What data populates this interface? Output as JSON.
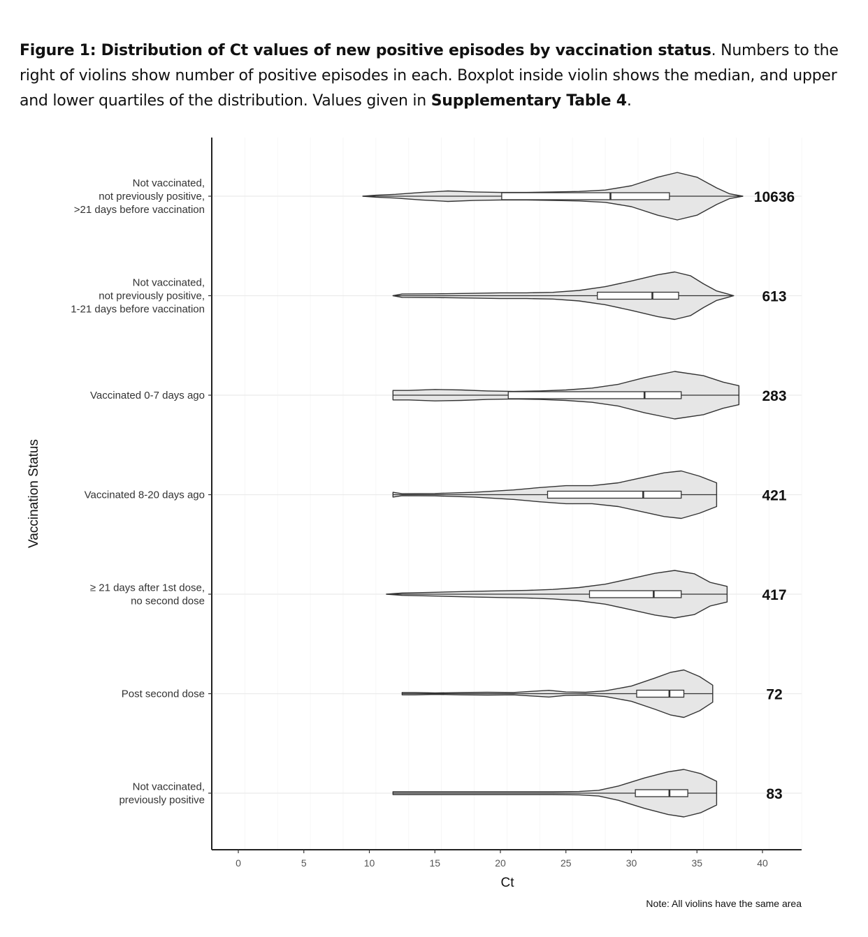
{
  "caption": {
    "figure_label": "Figure 1: Distribution of Ct values of new positive episodes by vaccination status",
    "text_1": ". Numbers to the right of violins show number of positive episodes in each. Boxplot inside violin shows the median, and upper and lower quartiles of the distribution. Values given in ",
    "table_ref": "Supplementary Table 4",
    "text_2": "."
  },
  "chart_data": {
    "type": "violin",
    "orientation": "horizontal",
    "xlabel": "Ct",
    "ylabel": "Vaccination Status",
    "xlim": [
      -2,
      43
    ],
    "xticks": [
      0,
      5,
      10,
      15,
      20,
      25,
      30,
      35,
      40
    ],
    "grid": true,
    "note": "Note: All violins have the same area",
    "colors": {
      "violin_fill": "#e6e6e6",
      "outline": "#333333",
      "box_fill": "#ffffff",
      "grid": "#ebebeb"
    },
    "categories": [
      {
        "label_lines": [
          "Not vaccinated,",
          "not previously positive,",
          ">21 days before vaccination"
        ],
        "count": "10636",
        "min": 9.5,
        "max": 38.5,
        "q1": 20.1,
        "median": 28.4,
        "q3": 32.9,
        "density": [
          [
            9.5,
            0
          ],
          [
            10.5,
            0.04
          ],
          [
            12,
            0.08
          ],
          [
            14,
            0.16
          ],
          [
            16,
            0.22
          ],
          [
            18,
            0.18
          ],
          [
            20,
            0.16
          ],
          [
            22,
            0.16
          ],
          [
            24,
            0.18
          ],
          [
            26,
            0.2
          ],
          [
            28,
            0.26
          ],
          [
            30,
            0.44
          ],
          [
            32,
            0.8
          ],
          [
            33.5,
            1.0
          ],
          [
            35,
            0.8
          ],
          [
            36.5,
            0.35
          ],
          [
            37.5,
            0.1
          ],
          [
            38.5,
            0
          ]
        ]
      },
      {
        "label_lines": [
          "Not vaccinated,",
          "not previously positive,",
          "1-21 days before vaccination"
        ],
        "count": "613",
        "min": 11.8,
        "max": 37.8,
        "q1": 27.4,
        "median": 31.6,
        "q3": 33.6,
        "density": [
          [
            11.8,
            0
          ],
          [
            12.5,
            0.07
          ],
          [
            15,
            0.08
          ],
          [
            18,
            0.1
          ],
          [
            20,
            0.12
          ],
          [
            22,
            0.12
          ],
          [
            24,
            0.14
          ],
          [
            26,
            0.22
          ],
          [
            28,
            0.38
          ],
          [
            30,
            0.62
          ],
          [
            32,
            0.88
          ],
          [
            33.3,
            1.0
          ],
          [
            34.5,
            0.84
          ],
          [
            35.5,
            0.5
          ],
          [
            36.5,
            0.2
          ],
          [
            37.3,
            0.08
          ],
          [
            37.8,
            0
          ]
        ]
      },
      {
        "label_lines": [
          "Vaccinated 0-7 days ago"
        ],
        "count": "283",
        "min": 11.8,
        "max": 38.2,
        "q1": 20.6,
        "median": 31.0,
        "q3": 33.8,
        "density": [
          [
            11.8,
            0.2
          ],
          [
            13,
            0.2
          ],
          [
            15,
            0.24
          ],
          [
            17,
            0.22
          ],
          [
            19,
            0.18
          ],
          [
            21,
            0.16
          ],
          [
            23,
            0.18
          ],
          [
            25,
            0.22
          ],
          [
            27,
            0.3
          ],
          [
            29,
            0.46
          ],
          [
            31,
            0.74
          ],
          [
            33.3,
            1.0
          ],
          [
            35.5,
            0.82
          ],
          [
            37,
            0.55
          ],
          [
            38.2,
            0.4
          ]
        ]
      },
      {
        "label_lines": [
          "Vaccinated 8-20 days ago"
        ],
        "count": "421",
        "min": 11.8,
        "max": 36.5,
        "q1": 23.6,
        "median": 30.9,
        "q3": 33.8,
        "density": [
          [
            11.8,
            0.1
          ],
          [
            12.5,
            0.04
          ],
          [
            15,
            0.05
          ],
          [
            18,
            0.1
          ],
          [
            21,
            0.2
          ],
          [
            23,
            0.3
          ],
          [
            25,
            0.38
          ],
          [
            27,
            0.38
          ],
          [
            29,
            0.5
          ],
          [
            31,
            0.74
          ],
          [
            32.5,
            0.92
          ],
          [
            33.8,
            1.0
          ],
          [
            35.2,
            0.78
          ],
          [
            36.5,
            0.5
          ]
        ]
      },
      {
        "label_lines": [
          "≥ 21 days after 1st dose,",
          "no second dose"
        ],
        "count": "417",
        "min": 11.3,
        "max": 37.3,
        "q1": 26.8,
        "median": 31.7,
        "q3": 33.8,
        "density": [
          [
            11.3,
            0
          ],
          [
            12.5,
            0.05
          ],
          [
            15,
            0.08
          ],
          [
            18,
            0.12
          ],
          [
            20,
            0.14
          ],
          [
            22,
            0.16
          ],
          [
            24,
            0.2
          ],
          [
            26,
            0.28
          ],
          [
            28,
            0.42
          ],
          [
            30,
            0.66
          ],
          [
            31.8,
            0.88
          ],
          [
            33.3,
            1.0
          ],
          [
            34.8,
            0.86
          ],
          [
            36,
            0.5
          ],
          [
            37.3,
            0.33
          ]
        ]
      },
      {
        "label_lines": [
          "Post second dose"
        ],
        "count": "72",
        "min": 12.5,
        "max": 36.2,
        "q1": 30.4,
        "median": 32.9,
        "q3": 34.0,
        "density": [
          [
            12.5,
            0.05
          ],
          [
            13.5,
            0.05
          ],
          [
            15,
            0.03
          ],
          [
            17,
            0.05
          ],
          [
            19,
            0.06
          ],
          [
            21,
            0.05
          ],
          [
            22.5,
            0.1
          ],
          [
            23.7,
            0.14
          ],
          [
            25,
            0.07
          ],
          [
            26.5,
            0.06
          ],
          [
            28,
            0.12
          ],
          [
            30,
            0.32
          ],
          [
            31.8,
            0.66
          ],
          [
            33,
            0.9
          ],
          [
            34,
            1.0
          ],
          [
            35.2,
            0.72
          ],
          [
            36.2,
            0.36
          ]
        ]
      },
      {
        "label_lines": [
          "Not vaccinated,",
          "previously positive"
        ],
        "count": "83",
        "min": 11.8,
        "max": 36.5,
        "q1": 30.3,
        "median": 32.9,
        "q3": 34.3,
        "density": [
          [
            11.8,
            0.06
          ],
          [
            13,
            0.06
          ],
          [
            15,
            0.06
          ],
          [
            18,
            0.06
          ],
          [
            21,
            0.06
          ],
          [
            24,
            0.06
          ],
          [
            26,
            0.07
          ],
          [
            27.5,
            0.12
          ],
          [
            29,
            0.3
          ],
          [
            31,
            0.64
          ],
          [
            32.8,
            0.9
          ],
          [
            34,
            1.0
          ],
          [
            35.3,
            0.82
          ],
          [
            36.5,
            0.5
          ]
        ]
      }
    ]
  }
}
